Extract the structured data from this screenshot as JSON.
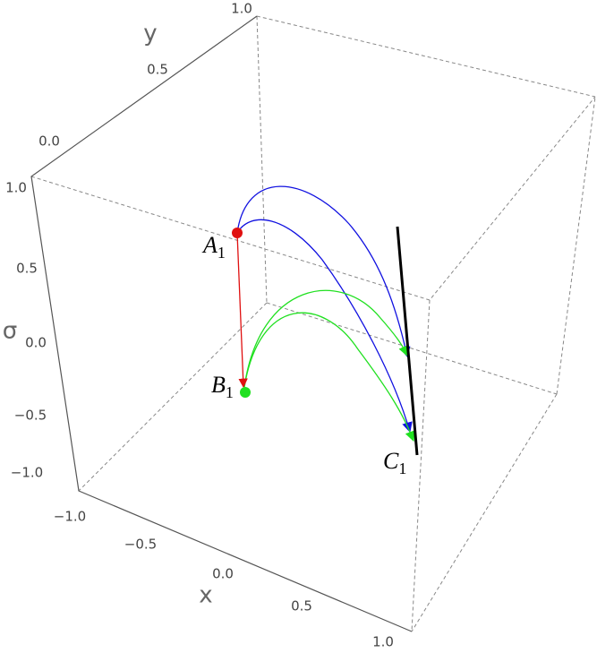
{
  "axes": {
    "x": {
      "label": "x",
      "ticks": [
        "−1.0",
        "−0.5",
        "0.0",
        "0.5",
        "1.0"
      ]
    },
    "y": {
      "label": "y",
      "ticks": [
        "0.0",
        "0.5",
        "1.0"
      ]
    },
    "sigma": {
      "label": "σ",
      "ticks": [
        "1.0",
        "0.5",
        "0.0",
        "−0.5",
        "−1.0"
      ]
    }
  },
  "points": [
    {
      "label": "A",
      "subscript": "1"
    },
    {
      "label": "B",
      "subscript": "1"
    },
    {
      "label": "C",
      "subscript": "1"
    }
  ]
}
